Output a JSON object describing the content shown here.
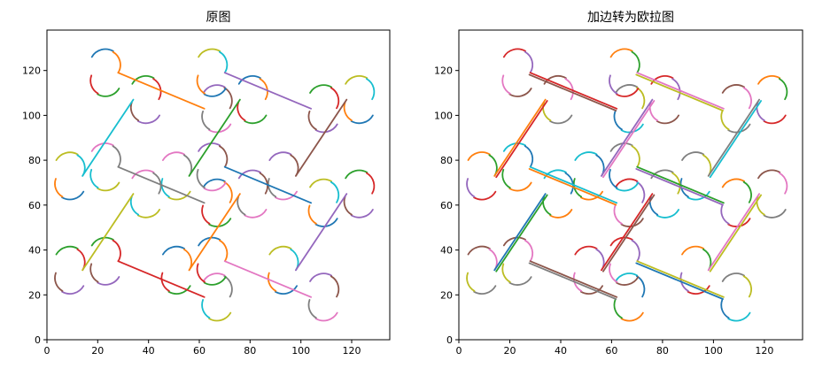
{
  "chart_data": [
    {
      "type": "line",
      "title": "原图",
      "xlim": [
        0,
        135
      ],
      "ylim": [
        0,
        138
      ],
      "xticks": [
        0,
        20,
        40,
        60,
        80,
        100,
        120
      ],
      "yticks": [
        0,
        20,
        40,
        60,
        80,
        100,
        120
      ],
      "grid": false,
      "palette": [
        "#1f77b4",
        "#ff7f0e",
        "#2ca02c",
        "#d62728",
        "#9467bd",
        "#8c564b",
        "#e377c2",
        "#7f7f7f",
        "#bcbd22",
        "#17becf"
      ],
      "diagonals": [
        {
          "x": [
            28,
            62
          ],
          "y": [
            119,
            103
          ]
        },
        {
          "x": [
            70,
            104
          ],
          "y": [
            119,
            103
          ]
        },
        {
          "x": [
            28,
            62
          ],
          "y": [
            77,
            61
          ]
        },
        {
          "x": [
            70,
            104
          ],
          "y": [
            77,
            61
          ]
        },
        {
          "x": [
            28,
            62
          ],
          "y": [
            35,
            19
          ]
        },
        {
          "x": [
            70,
            104
          ],
          "y": [
            35,
            19
          ]
        },
        {
          "x": [
            14,
            34
          ],
          "y": [
            73,
            107
          ]
        },
        {
          "x": [
            56,
            76
          ],
          "y": [
            73,
            107
          ]
        },
        {
          "x": [
            98,
            118
          ],
          "y": [
            73,
            107
          ]
        },
        {
          "x": [
            14,
            34
          ],
          "y": [
            31,
            65
          ]
        },
        {
          "x": [
            56,
            76
          ],
          "y": [
            31,
            65
          ]
        },
        {
          "x": [
            98,
            118
          ],
          "y": [
            31,
            65
          ]
        }
      ]
    },
    {
      "type": "line",
      "title": "加边转为欧拉图",
      "xlim": [
        0,
        135
      ],
      "ylim": [
        0,
        138
      ],
      "xticks": [
        0,
        20,
        40,
        60,
        80,
        100,
        120
      ],
      "yticks": [
        0,
        20,
        40,
        60,
        80,
        100,
        120
      ],
      "grid": false,
      "palette": [
        "#1f77b4",
        "#ff7f0e",
        "#2ca02c",
        "#d62728",
        "#9467bd",
        "#8c564b",
        "#e377c2",
        "#7f7f7f",
        "#bcbd22",
        "#17becf"
      ],
      "diagonals": [
        {
          "x": [
            28,
            62
          ],
          "y": [
            119,
            103
          ]
        },
        {
          "x": [
            70,
            104
          ],
          "y": [
            119,
            103
          ]
        },
        {
          "x": [
            28,
            62
          ],
          "y": [
            77,
            61
          ]
        },
        {
          "x": [
            70,
            104
          ],
          "y": [
            77,
            61
          ]
        },
        {
          "x": [
            28,
            62
          ],
          "y": [
            35,
            19
          ]
        },
        {
          "x": [
            70,
            104
          ],
          "y": [
            35,
            19
          ]
        },
        {
          "x": [
            14,
            34
          ],
          "y": [
            73,
            107
          ]
        },
        {
          "x": [
            56,
            76
          ],
          "y": [
            73,
            107
          ]
        },
        {
          "x": [
            98,
            118
          ],
          "y": [
            73,
            107
          ]
        },
        {
          "x": [
            14,
            34
          ],
          "y": [
            31,
            65
          ]
        },
        {
          "x": [
            56,
            76
          ],
          "y": [
            31,
            65
          ]
        },
        {
          "x": [
            98,
            118
          ],
          "y": [
            31,
            65
          ]
        }
      ],
      "added_edges": [
        {
          "x": [
            28,
            62
          ],
          "y": [
            119,
            103
          ]
        },
        {
          "x": [
            70,
            104
          ],
          "y": [
            119,
            103
          ]
        },
        {
          "x": [
            28,
            62
          ],
          "y": [
            77,
            61
          ]
        },
        {
          "x": [
            70,
            104
          ],
          "y": [
            77,
            61
          ]
        },
        {
          "x": [
            28,
            62
          ],
          "y": [
            35,
            19
          ]
        },
        {
          "x": [
            70,
            104
          ],
          "y": [
            35,
            19
          ]
        },
        {
          "x": [
            14,
            34
          ],
          "y": [
            73,
            107
          ]
        },
        {
          "x": [
            56,
            76
          ],
          "y": [
            73,
            107
          ]
        },
        {
          "x": [
            98,
            118
          ],
          "y": [
            73,
            107
          ]
        },
        {
          "x": [
            14,
            34
          ],
          "y": [
            31,
            65
          ]
        },
        {
          "x": [
            56,
            76
          ],
          "y": [
            31,
            65
          ]
        },
        {
          "x": [
            98,
            118
          ],
          "y": [
            31,
            65
          ]
        }
      ]
    }
  ]
}
